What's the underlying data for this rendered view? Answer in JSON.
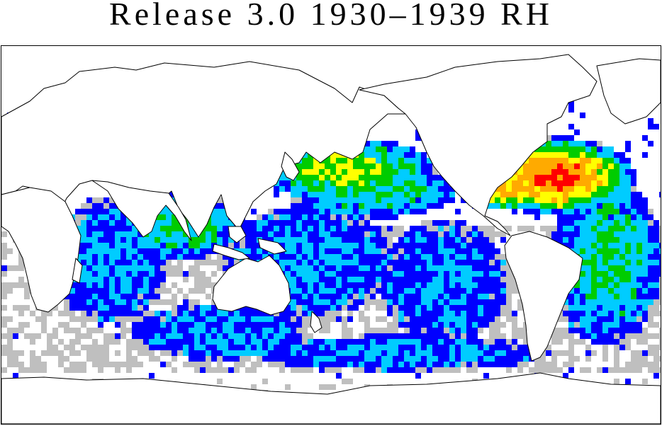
{
  "title": "Release 3.0 1930–1939 RH",
  "map": {
    "projection": "equirectangular world map, centered on the Pacific",
    "colors": {
      "low": "#bfbfbf",
      "blue": "#0000ff",
      "cyan": "#00ccff",
      "green": "#00cc00",
      "yellow": "#ffff00",
      "orange": "#ffaa00",
      "red": "#ff0000",
      "coast": "#000000",
      "land": "#ffffff"
    }
  }
}
